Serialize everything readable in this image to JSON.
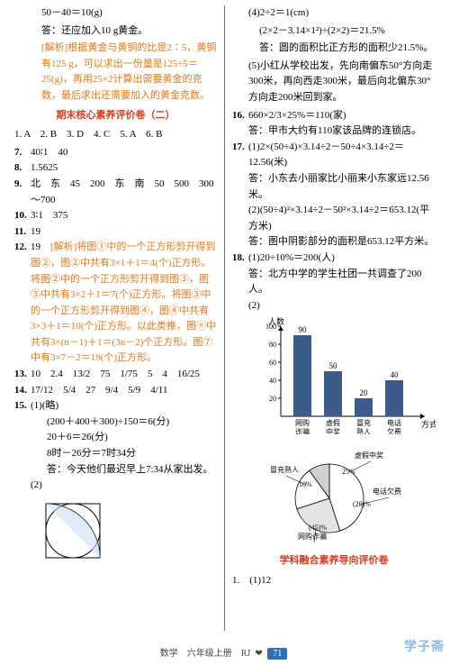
{
  "left": {
    "l1": "50－40＝10(g)",
    "l2": "答：还应加入10 g黄金。",
    "l3": "根据黄金与黄铜的比是2∶5，黄铜有125 g，可以求出一份量是125÷5＝25(g)，再用25×2计算出需要黄金的克数，最后求出还需要加入的黄金克数。",
    "section2": "期末核心素养评价卷（二）",
    "q1": "1. A　2. B　3. D　4. C　5. A　6. B",
    "q7": "40∶1　40",
    "q8": "1.5625",
    "q9": "北　东　45　200　东　南　50　500　300～700",
    "q10": "3∶1　375",
    "q11": "19",
    "q12_text": "19　",
    "q12_exp": "将图①中的一个正方形剪开得到图②，图②中共有3×1＋1＝4(个)正方形。将图②中的一个正方形剪开得到图③，图③中共有3×2＋1＝7(个)正方形。将图③中的一个正方形剪开得到图④，图④中共有3×3＋1＝10(个)正方形。以此类推，图ⓝ中共有3×(n－1)＋1＝(3n－2)个正方形。图⑦中有3×7－2＝19(个)正方形。",
    "q13_cells": [
      "10",
      "2.4",
      "13/2",
      "75",
      "1/75",
      "5",
      "4",
      "16/25"
    ],
    "q14_cells": [
      "17/12",
      "5/4",
      "27",
      "9/4",
      "5/9",
      "4/11"
    ],
    "q15_1a": "(1)(略)",
    "q15_1b": "(200＋400＋300)÷150＝6(分)",
    "q15_1c": "20＋6＝26(分)",
    "q15_1d": "8时－26分＝7时34分",
    "q15_1e": "答：今天他们最迟早上7:34从家出发。",
    "q15_2": "(2)"
  },
  "right": {
    "r1": "(4)2÷2＝1(cm)",
    "r2": "(2×2－3.14×1²)÷(2×2)＝21.5%",
    "r3": "答：圆的面积比正方形的面积少21.5%。",
    "r4": "(5)小红从学校出发，先向南偏东50°方向走300米，再向西走300米，最后向北偏东30°方向走200米回到家。",
    "q16a": "660×2/3×25%＝110(家)",
    "q16b": "答：甲市大约有110家该品牌的连锁店。",
    "q17_1a": "(1)2×(50÷4)×3.14÷2－50÷4×3.14÷2＝12.56(米)",
    "q17_1b": "答：小东去小丽家比小丽来小东家远12.56米。",
    "q17_2a": "(2)(50÷4)²×3.14÷2－50²×3.14÷2＝653.12(平方米)",
    "q17_2b": "答：图中阴影部分的面积是653.12平方米。",
    "q18_1a": "(1)20÷10%＝200(人)",
    "q18_1b": "答：北方中学的学生社团一共调查了200人。",
    "q18_2": "(2)",
    "chart": {
      "ylabel": "人数",
      "y_ticks": [
        20,
        40,
        60,
        80,
        100
      ],
      "bars": [
        {
          "label": "网购诈骗",
          "value": 90,
          "text": "90"
        },
        {
          "label": "虚假中奖",
          "value": 50,
          "text": "50"
        },
        {
          "label": "冒充熟人",
          "value": 20,
          "text": "20"
        },
        {
          "label": "电话欠费",
          "value": 40,
          "text": "40"
        }
      ],
      "xlabel": "方式",
      "bar_color": "#3b5b8a",
      "axis_color": "#000"
    },
    "pie": {
      "slices": [
        {
          "label": "网购诈骗",
          "pct": "(45)%",
          "color": "#ffffff"
        },
        {
          "label": "虚假中奖",
          "pct": "25%",
          "color": "#ffffff"
        },
        {
          "label": "电话欠费",
          "pct": "(20)%",
          "color": "#ffffff"
        },
        {
          "label": "冒充熟人",
          "pct": "10%",
          "color": "#ffffff"
        }
      ]
    },
    "section3": "学科融合素养导向评价卷",
    "q_last": "1.　(1)12"
  },
  "footer": {
    "left": "数学　六年级上册　RJ",
    "page": "71"
  },
  "exp_label": "[解析]",
  "watermark": "学子斋"
}
